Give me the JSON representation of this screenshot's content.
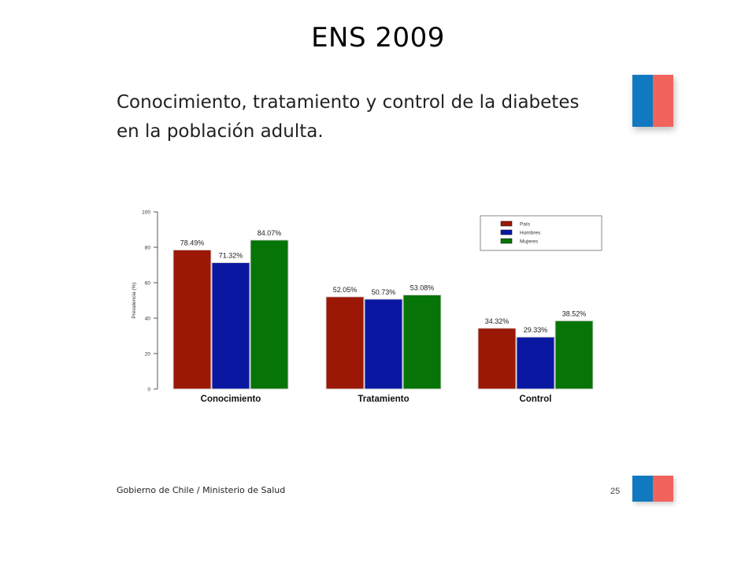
{
  "slide": {
    "title": "ENS 2009",
    "subtitle": "Conocimiento, tratamiento y control de la diabetes en la población adulta.",
    "footer": "Gobierno de Chile / Ministerio de Salud",
    "page_number": "25"
  },
  "colors": {
    "flag_blue": "#1179c0",
    "flag_red": "#f2635c"
  },
  "chart_data": {
    "type": "bar",
    "categories": [
      "Conocimiento",
      "Tratamiento",
      "Control"
    ],
    "series": [
      {
        "name": "País",
        "color": "#9b1706",
        "values": [
          78.49,
          52.05,
          34.32
        ],
        "labels": [
          "78.49%",
          "52.05%",
          "34.32%"
        ]
      },
      {
        "name": "Hombres",
        "color": "#0a17a0",
        "values": [
          71.32,
          50.73,
          29.33
        ],
        "labels": [
          "71.32%",
          "50.73%",
          "29.33%"
        ]
      },
      {
        "name": "Mujeres",
        "color": "#067406",
        "values": [
          84.07,
          53.08,
          38.52
        ],
        "labels": [
          "84.07%",
          "53.08%",
          "38.52%"
        ]
      }
    ],
    "ylabel": "Prevalencia (%)",
    "xlabel": "",
    "ylim": [
      0,
      100
    ],
    "yticks": [
      "0",
      "20",
      "40",
      "60",
      "80",
      "100"
    ],
    "legend_position": "top-right",
    "grid": false
  }
}
